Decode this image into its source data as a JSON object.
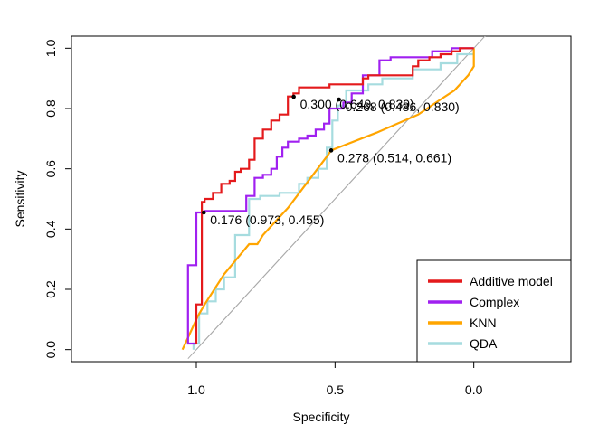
{
  "chart_data": {
    "type": "line",
    "title": "",
    "xlabel": "Specificity",
    "ylabel": "Sensitivity",
    "xlim": [
      1.45,
      -0.35
    ],
    "ylim": [
      -0.04,
      1.04
    ],
    "x_ticks": [
      {
        "v": 1.0,
        "label": "1.0"
      },
      {
        "v": 0.5,
        "label": "0.5"
      },
      {
        "v": 0.0,
        "label": "0.0"
      }
    ],
    "y_ticks": [
      {
        "v": 0.0,
        "label": "0.0"
      },
      {
        "v": 0.2,
        "label": "0.2"
      },
      {
        "v": 0.4,
        "label": "0.4"
      },
      {
        "v": 0.6,
        "label": "0.6"
      },
      {
        "v": 0.8,
        "label": "0.8"
      },
      {
        "v": 1.0,
        "label": "1.0"
      }
    ],
    "reference_line": {
      "x": [
        1.0,
        0.0
      ],
      "y": [
        0.0,
        1.0
      ],
      "color": "#aaaaaa"
    },
    "series": [
      {
        "name": "Additive model",
        "color": "#e41a1c",
        "x": [
          1.0,
          1.0,
          0.98,
          0.98,
          0.97,
          0.97,
          0.94,
          0.94,
          0.91,
          0.91,
          0.88,
          0.88,
          0.86,
          0.86,
          0.84,
          0.84,
          0.81,
          0.81,
          0.79,
          0.79,
          0.76,
          0.76,
          0.73,
          0.73,
          0.7,
          0.7,
          0.67,
          0.67,
          0.65,
          0.65,
          0.63,
          0.63,
          0.6,
          0.6,
          0.52,
          0.52,
          0.4,
          0.4,
          0.38,
          0.38,
          0.22,
          0.22,
          0.2,
          0.2,
          0.16,
          0.16,
          0.12,
          0.12,
          0.08,
          0.08,
          0.05,
          0.05,
          0.0
        ],
        "y": [
          0.02,
          0.15,
          0.15,
          0.49,
          0.49,
          0.5,
          0.5,
          0.52,
          0.52,
          0.55,
          0.55,
          0.56,
          0.56,
          0.59,
          0.59,
          0.6,
          0.6,
          0.63,
          0.63,
          0.7,
          0.7,
          0.73,
          0.73,
          0.76,
          0.76,
          0.78,
          0.78,
          0.84,
          0.84,
          0.85,
          0.85,
          0.87,
          0.87,
          0.87,
          0.87,
          0.88,
          0.88,
          0.9,
          0.9,
          0.91,
          0.91,
          0.94,
          0.94,
          0.96,
          0.96,
          0.97,
          0.97,
          0.98,
          0.98,
          0.99,
          0.99,
          1.0,
          1.0
        ]
      },
      {
        "name": "Complex",
        "color": "#a020f0",
        "x": [
          1.0,
          1.03,
          1.03,
          1.0,
          1.0,
          0.97,
          0.97,
          0.82,
          0.82,
          0.79,
          0.79,
          0.76,
          0.76,
          0.73,
          0.73,
          0.71,
          0.71,
          0.69,
          0.69,
          0.67,
          0.67,
          0.63,
          0.63,
          0.6,
          0.6,
          0.57,
          0.57,
          0.54,
          0.54,
          0.52,
          0.52,
          0.47,
          0.47,
          0.44,
          0.44,
          0.4,
          0.4,
          0.34,
          0.34,
          0.3,
          0.3,
          0.15,
          0.15,
          0.08,
          0.08,
          0.0
        ],
        "y": [
          0.02,
          0.02,
          0.28,
          0.28,
          0.455,
          0.455,
          0.46,
          0.46,
          0.51,
          0.51,
          0.57,
          0.57,
          0.58,
          0.58,
          0.6,
          0.6,
          0.64,
          0.64,
          0.67,
          0.67,
          0.69,
          0.69,
          0.7,
          0.7,
          0.71,
          0.71,
          0.73,
          0.73,
          0.75,
          0.75,
          0.8,
          0.8,
          0.82,
          0.82,
          0.85,
          0.85,
          0.91,
          0.91,
          0.96,
          0.96,
          0.97,
          0.97,
          0.99,
          0.99,
          1.0,
          1.0
        ]
      },
      {
        "name": "KNN",
        "color": "#ffa500",
        "x": [
          1.05,
          0.995,
          0.97,
          0.9,
          0.81,
          0.78,
          0.76,
          0.67,
          0.53,
          0.514,
          0.35,
          0.2,
          0.12,
          0.07,
          0.02,
          0.0,
          0.0
        ],
        "y": [
          0.0,
          0.11,
          0.15,
          0.25,
          0.35,
          0.35,
          0.38,
          0.47,
          0.64,
          0.661,
          0.72,
          0.78,
          0.83,
          0.86,
          0.91,
          0.94,
          1.0
        ]
      },
      {
        "name": "QDA",
        "color": "#a6dcdf",
        "x": [
          1.01,
          1.01,
          0.99,
          0.99,
          0.96,
          0.96,
          0.93,
          0.93,
          0.9,
          0.9,
          0.86,
          0.86,
          0.81,
          0.81,
          0.77,
          0.77,
          0.7,
          0.7,
          0.63,
          0.63,
          0.6,
          0.6,
          0.56,
          0.56,
          0.53,
          0.53,
          0.51,
          0.51,
          0.49,
          0.49,
          0.46,
          0.46,
          0.38,
          0.38,
          0.33,
          0.33,
          0.22,
          0.22,
          0.12,
          0.12,
          0.06,
          0.06,
          0.0
        ],
        "y": [
          0.0,
          0.02,
          0.02,
          0.12,
          0.12,
          0.16,
          0.16,
          0.2,
          0.2,
          0.24,
          0.24,
          0.38,
          0.38,
          0.5,
          0.5,
          0.51,
          0.51,
          0.52,
          0.52,
          0.55,
          0.55,
          0.57,
          0.57,
          0.6,
          0.6,
          0.67,
          0.67,
          0.76,
          0.76,
          0.81,
          0.81,
          0.86,
          0.86,
          0.88,
          0.88,
          0.9,
          0.9,
          0.93,
          0.93,
          0.95,
          0.95,
          0.98,
          0.98
        ]
      }
    ],
    "threshold_points": [
      {
        "name": "Additive model",
        "x": 0.649,
        "y": 0.839,
        "label": "0.300 (0.649, 0.839)"
      },
      {
        "name": "Complex",
        "x": 0.486,
        "y": 0.83,
        "label": "0.268 (0.486, 0.830)"
      },
      {
        "name": "KNN",
        "x": 0.514,
        "y": 0.661,
        "label": "0.278 (0.514, 0.661)"
      },
      {
        "name": "QDA",
        "x": 0.973,
        "y": 0.455,
        "label": "0.176 (0.973, 0.455)"
      }
    ],
    "legend": {
      "position": "bottom-right",
      "entries": [
        "Additive model",
        "Complex",
        "KNN",
        "QDA"
      ]
    }
  }
}
